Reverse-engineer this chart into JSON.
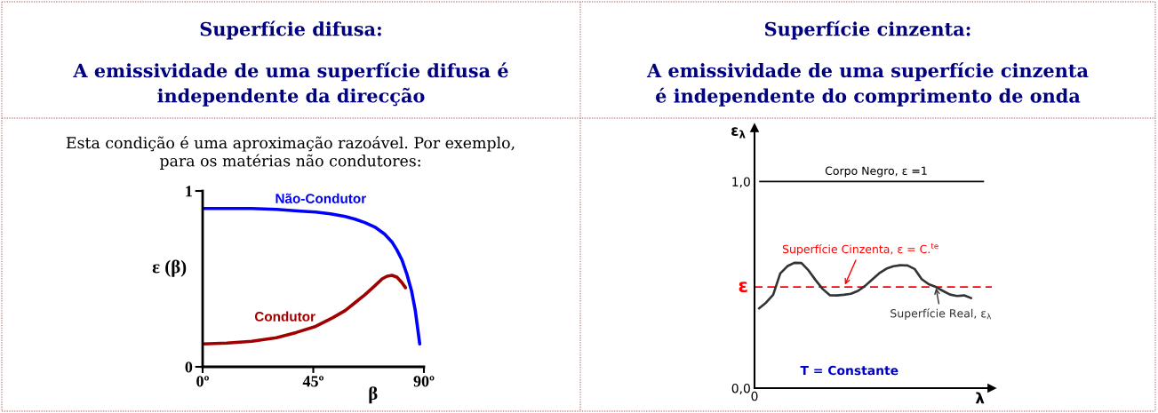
{
  "chart_data": [
    {
      "type": "line",
      "title": "Superfície difusa:",
      "subtitle": "A emissividade de uma superfície difusa é\nindependente da direcção",
      "annotations": [
        "Esta condição é uma aproximação razoável. Por exemplo,\npara os matérias não condutores:"
      ],
      "xlabel": "β",
      "ylabel": "ε (β)",
      "xlim": [
        0,
        90
      ],
      "xticks": [
        {
          "value": 0,
          "label": "0º"
        },
        {
          "value": 45,
          "label": "45º"
        },
        {
          "value": 90,
          "label": "90º"
        }
      ],
      "ylim": [
        0,
        1
      ],
      "yticks": [
        0,
        1
      ],
      "series": [
        {
          "name": "Não-Condutor",
          "color": "#0000ff",
          "x": [
            0,
            10,
            20,
            30,
            40,
            46,
            52,
            58,
            62,
            66,
            70,
            74,
            77,
            79,
            81,
            83,
            85,
            86.5,
            88.3
          ],
          "values": [
            0.9,
            0.9,
            0.9,
            0.895,
            0.885,
            0.88,
            0.87,
            0.855,
            0.84,
            0.82,
            0.795,
            0.755,
            0.71,
            0.665,
            0.61,
            0.53,
            0.43,
            0.32,
            0.13
          ]
        },
        {
          "name": "Condutor",
          "color": "#a00000",
          "x": [
            0,
            10,
            20,
            30,
            38,
            46,
            53,
            58,
            62,
            66,
            70,
            73,
            75,
            77,
            79,
            81,
            82.5
          ],
          "values": [
            0.13,
            0.135,
            0.145,
            0.165,
            0.195,
            0.23,
            0.28,
            0.32,
            0.365,
            0.41,
            0.46,
            0.5,
            0.515,
            0.52,
            0.51,
            0.48,
            0.45
          ]
        }
      ]
    },
    {
      "type": "line",
      "title": "Superfície cinzenta:",
      "subtitle": "A emissividade de uma superfície cinzenta\né independente do comprimento de onda",
      "annotations": [
        "T = Constante",
        "0",
        {
          "text": "Superfície Cinzenta, ε = C.$^{te}$",
          "y": 0.49
        }
      ],
      "xlabel": "λ",
      "ylabel": "ε$_{λ}$",
      "categories": [
        null,
        null,
        null,
        null,
        null,
        null,
        null,
        null,
        null,
        null,
        null,
        null,
        null,
        null,
        null,
        null,
        null,
        null,
        null,
        null,
        null,
        null,
        null,
        null,
        null,
        null,
        null,
        null,
        null,
        null,
        null
      ],
      "ylim": [
        0,
        1.26
      ],
      "yticks": [
        {
          "value": 0,
          "label": "0,0"
        },
        {
          "value": 1,
          "label": "1,0"
        }
      ],
      "ref_lines": [
        {
          "axis": "y",
          "value": 1,
          "label": "Corpo Negro, ε =1",
          "color": "#000000",
          "line_style": "solid"
        },
        {
          "axis": "y",
          "value": 0.49,
          "label": "ε",
          "color": "#ff0000",
          "line_style": "dashed"
        }
      ],
      "series": [
        {
          "name": "Superfície Real, ε$_{λ}$",
          "color": "#333333",
          "values": [
            0.386,
            0.414,
            0.452,
            0.555,
            0.59,
            0.607,
            0.606,
            0.57,
            0.523,
            0.48,
            0.45,
            0.449,
            0.452,
            0.457,
            0.471,
            0.495,
            0.526,
            0.556,
            0.578,
            0.59,
            0.595,
            0.594,
            0.577,
            0.528,
            0.503,
            0.49,
            0.471,
            0.453,
            0.446,
            0.449,
            0.436
          ]
        }
      ]
    }
  ]
}
